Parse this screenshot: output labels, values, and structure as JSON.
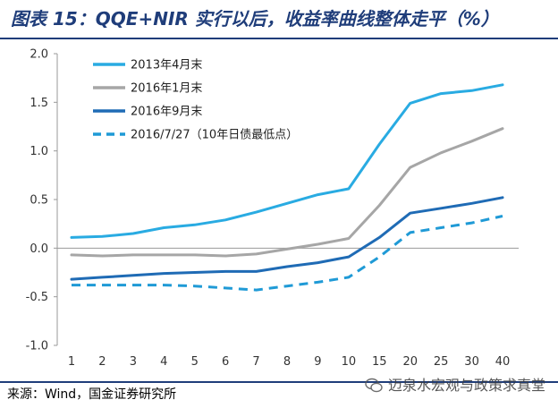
{
  "header": {
    "title": "图表 15：QQE+NIR 实行以后，收益率曲线整体走平（%）"
  },
  "footer": {
    "source": "来源：Wind，国金证券研究所",
    "watermark": "迈泉水宏观与政策求真堂"
  },
  "chart_data": {
    "type": "line",
    "categories": [
      "1",
      "2",
      "3",
      "4",
      "5",
      "6",
      "7",
      "8",
      "9",
      "10",
      "15",
      "20",
      "25",
      "30",
      "40"
    ],
    "ylim": [
      -1.0,
      2.0
    ],
    "yticks": [
      "2.0",
      "1.5",
      "1.0",
      "0.5",
      "0.0",
      "-0.5",
      "-1.0"
    ],
    "ytick_values": [
      2.0,
      1.5,
      1.0,
      0.5,
      0.0,
      -0.5,
      -1.0
    ],
    "legend_position": "top-left",
    "grid": false,
    "series": [
      {
        "name": "2013年4月末",
        "color": "#29abe2",
        "dash": "solid",
        "values": [
          0.11,
          0.12,
          0.15,
          0.21,
          0.24,
          0.29,
          0.37,
          0.46,
          0.55,
          0.61,
          1.07,
          1.49,
          1.59,
          1.62,
          1.68
        ]
      },
      {
        "name": "2016年1月末",
        "color": "#a6a6a6",
        "dash": "solid",
        "values": [
          -0.07,
          -0.08,
          -0.07,
          -0.07,
          -0.07,
          -0.08,
          -0.06,
          -0.01,
          0.04,
          0.1,
          0.44,
          0.83,
          0.98,
          1.1,
          1.23
        ]
      },
      {
        "name": "2016年9月末",
        "color": "#1f6bb5",
        "dash": "solid",
        "values": [
          -0.32,
          -0.3,
          -0.28,
          -0.26,
          -0.25,
          -0.24,
          -0.24,
          -0.19,
          -0.15,
          -0.09,
          0.11,
          0.36,
          0.41,
          0.46,
          0.52
        ]
      },
      {
        "name": "2016/7/27（10年日债最低点）",
        "color": "#1f9ad6",
        "dash": "dashed",
        "values": [
          -0.38,
          -0.38,
          -0.38,
          -0.38,
          -0.39,
          -0.41,
          -0.43,
          -0.39,
          -0.35,
          -0.3,
          -0.09,
          0.16,
          0.21,
          0.26,
          0.33
        ]
      }
    ]
  }
}
